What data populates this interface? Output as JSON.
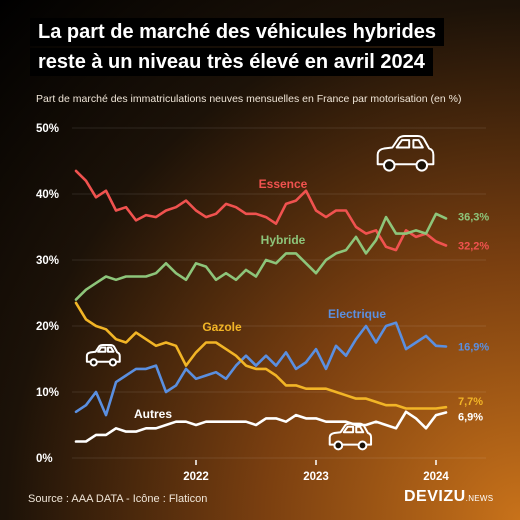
{
  "title_lines": [
    "La part de marché des véhicules hybrides",
    "reste à un niveau très élevé en avril 2024"
  ],
  "subtitle": "Part de marché des immatriculations neuves mensuelles en France par motorisation (en %)",
  "source": "Source : AAA DATA - Icône : Flaticon",
  "brand": {
    "main": "DEVIZU",
    "suffix": ".NEWS"
  },
  "colors": {
    "essence": "#f0524f",
    "hybride": "#8dc57a",
    "electrique": "#5a8fe0",
    "gazole": "#f2b526",
    "autres": "#ffffff"
  },
  "icons": [
    "car-icon",
    "car-icon",
    "car-icon"
  ],
  "chart_data": {
    "type": "line",
    "title": "La part de marché des véhicules hybrides reste à un niveau très élevé en avril 2024",
    "subtitle": "Part de marché des immatriculations neuves mensuelles en France par motorisation (en %)",
    "x_start": "2021-01",
    "x_end": "2024-04",
    "x_ticks": [
      "2022",
      "2023",
      "2024"
    ],
    "y_ticks": [
      "0%",
      "10%",
      "20%",
      "30%",
      "40%",
      "50%"
    ],
    "ylim": [
      0,
      50
    ],
    "legend": "inline labels",
    "series": [
      {
        "name": "Essence",
        "end_label": "32,2%",
        "values": [
          43.5,
          42,
          39.5,
          40.5,
          37.5,
          38,
          36,
          36.8,
          36.5,
          37.5,
          38,
          39,
          37.5,
          36.5,
          37,
          38.5,
          38,
          37,
          37,
          36.5,
          35.5,
          38.5,
          39,
          40.5,
          37.5,
          36.5,
          37.5,
          37.5,
          35,
          34,
          34.5,
          32,
          31.5,
          34.5,
          33.5,
          34,
          32.8,
          32.2
        ]
      },
      {
        "name": "Hybride",
        "end_label": "36,3%",
        "values": [
          24,
          25.5,
          26.5,
          27.5,
          27,
          27.5,
          27.5,
          27.5,
          28,
          29.5,
          28,
          27,
          29.5,
          29,
          27,
          28,
          27,
          28.5,
          27.5,
          30,
          29.5,
          31,
          31,
          29.5,
          28,
          30,
          31,
          31.5,
          33.5,
          31,
          33,
          36.5,
          34,
          34,
          34.5,
          34,
          37,
          36.3
        ]
      },
      {
        "name": "Electrique",
        "end_label": "16,9%",
        "values": [
          7,
          8,
          10,
          6.5,
          11.5,
          12.5,
          13.5,
          13.5,
          14,
          10,
          11,
          13.5,
          12,
          12.5,
          13,
          12,
          14,
          15.5,
          14,
          15.5,
          14,
          16,
          13.5,
          14.5,
          16.5,
          13.5,
          17,
          15.5,
          18,
          20,
          17.5,
          20,
          20.5,
          16.5,
          17.5,
          18.5,
          17,
          16.9
        ]
      },
      {
        "name": "Gazole",
        "end_label": "7,7%",
        "values": [
          23.5,
          21,
          20,
          19.5,
          18,
          17.5,
          19,
          18,
          17,
          17.5,
          17,
          14,
          16,
          17.5,
          17.5,
          16.5,
          15.5,
          14,
          13.5,
          13.5,
          12.5,
          11,
          11,
          10.5,
          10.5,
          10.5,
          10,
          9.5,
          9,
          9,
          8.5,
          8,
          8,
          7.5,
          7.5,
          7.5,
          7.5,
          7.7
        ]
      },
      {
        "name": "Autres",
        "end_label": "6,9%",
        "values": [
          2.5,
          2.5,
          3.5,
          3.5,
          4.5,
          4,
          4,
          4.5,
          4.5,
          5,
          5.5,
          5.5,
          5,
          5.5,
          5.5,
          5.5,
          5.5,
          5.5,
          5,
          6,
          6,
          5.5,
          6.5,
          6,
          6,
          5.5,
          5.5,
          5.5,
          5,
          5,
          5.5,
          5,
          4.5,
          7,
          6,
          4.5,
          6.5,
          6.9
        ]
      }
    ]
  }
}
